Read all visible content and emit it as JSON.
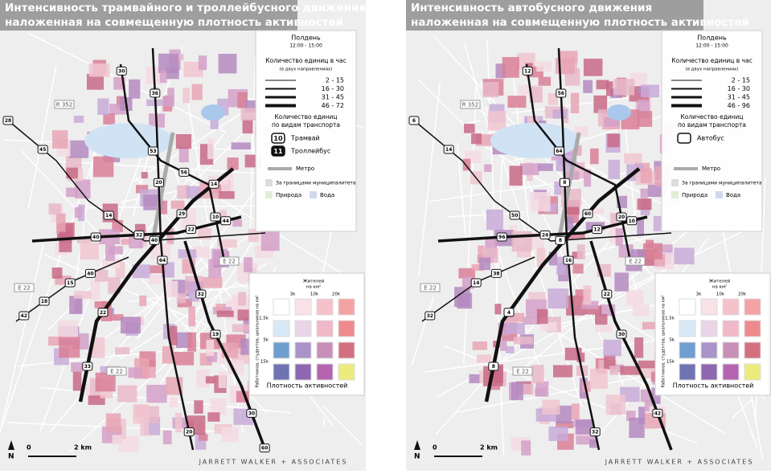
{
  "panels": [
    {
      "title": [
        "Интенсивность трамвайного и троллейбусного движения",
        "наложенная на совмещенную плотность активностей"
      ],
      "legend": {
        "time": "Полдень",
        "hours": "12:00 - 15:00",
        "count_title": "Количество единиц в час",
        "count_sub": "(в двух направлениях)",
        "ranges": [
          "2 - 15",
          "16 - 30",
          "31 - 45",
          "46 - 72"
        ],
        "mode_title": [
          "Количество единиц",
          "по видам транспорта"
        ],
        "modes": [
          {
            "badge": "10",
            "label": "Трамвай"
          },
          {
            "badge": "11",
            "label": "Троллейбус"
          }
        ],
        "metro": "Метро",
        "outside": "За границами муниципалитета",
        "nature": "Природа",
        "water": "Вода"
      },
      "roads": [
        "R 352",
        "E 22",
        "E 22",
        "E 22"
      ],
      "badges": [
        "28",
        "20",
        "22",
        "33",
        "15",
        "10",
        "32",
        "14",
        "20",
        "40",
        "29",
        "42",
        "53",
        "30",
        "45",
        "64",
        "44",
        "22",
        "40",
        "30",
        "19",
        "40",
        "36",
        "32",
        "14",
        "18",
        "56",
        "60"
      ]
    },
    {
      "title": [
        "Интенсивность автобусного движения",
        "наложенная на совмещенную плотность активностей"
      ],
      "legend": {
        "time": "Полдень",
        "hours": "12:00 - 15:00",
        "count_title": "Количество единиц в час",
        "count_sub": "(в двух направлениях)",
        "ranges": [
          "2 - 15",
          "16 - 30",
          "31 - 45",
          "46 - 96"
        ],
        "mode_title": [
          "Количество единиц",
          "по видам транспорта"
        ],
        "modes": [
          {
            "badge": "",
            "label": "Автобус"
          }
        ],
        "metro": "Метро",
        "outside": "За границами муниципалитета",
        "nature": "Природа",
        "water": "Вода"
      },
      "roads": [
        "R 352",
        "E 22",
        "E 22",
        "E 22"
      ],
      "badges": [
        "6",
        "8",
        "12",
        "8",
        "14",
        "20",
        "22",
        "50",
        "32",
        "96",
        "60",
        "32",
        "64",
        "42",
        "14",
        "16",
        "10",
        "4",
        "38",
        "12",
        "30",
        "8",
        "56",
        "24"
      ]
    }
  ],
  "density": {
    "top_label": [
      "Жителей",
      "на км²"
    ],
    "x_labels": [
      "3k",
      "10k",
      "20k"
    ],
    "y_labels": [
      "1.5k",
      "5k",
      "15k"
    ],
    "side_label": "Работников, студентов, школьников на км²",
    "title": "Плотность активностей"
  },
  "scale": {
    "zero": "0",
    "dist": "2 km",
    "north": "N"
  },
  "footer": "JARRETT WALKER + ASSOCIATES"
}
